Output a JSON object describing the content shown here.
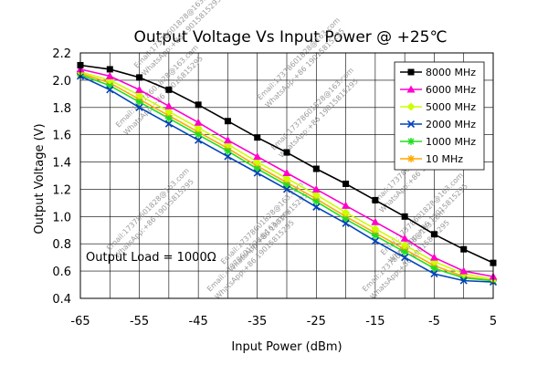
{
  "chart_data": {
    "type": "line",
    "title": "Output Voltage Vs Input Power @ +25℃",
    "xlabel": "Input Power (dBm)",
    "ylabel": "Output Voltage (V)",
    "xlim": [
      -65,
      5
    ],
    "ylim": [
      0.4,
      2.2
    ],
    "xticks": [
      -65,
      -55,
      -45,
      -35,
      -25,
      -15,
      -5,
      5
    ],
    "yticks": [
      0.4,
      0.6,
      0.8,
      1.0,
      1.2,
      1.4,
      1.6,
      1.8,
      2.0,
      2.2
    ],
    "xtick_labels": [
      "-65",
      "-55",
      "-45",
      "-35",
      "-25",
      "-15",
      "-5",
      "5"
    ],
    "ytick_labels": [
      "0.4",
      "0.6",
      "0.8",
      "1.0",
      "1.2",
      "1.4",
      "1.6",
      "1.8",
      "2.0",
      "2.2"
    ],
    "grid": true,
    "legend_position": "top-right",
    "annotation": "Output Load = 1000Ω",
    "series": [
      {
        "name": "8000 MHz",
        "color": "#000000",
        "marker": "square",
        "x": [
          -65,
          -60,
          -55,
          -50,
          -45,
          -40,
          -35,
          -30,
          -25,
          -20,
          -15,
          -10,
          -5,
          0,
          5
        ],
        "values": [
          2.11,
          2.08,
          2.02,
          1.93,
          1.82,
          1.7,
          1.58,
          1.47,
          1.35,
          1.24,
          1.12,
          1.0,
          0.87,
          0.76,
          0.66
        ]
      },
      {
        "name": "6000 MHz",
        "color": "#ff00cc",
        "marker": "triangle",
        "x": [
          -65,
          -60,
          -55,
          -50,
          -45,
          -40,
          -35,
          -30,
          -25,
          -20,
          -15,
          -10,
          -5,
          0,
          5
        ],
        "values": [
          2.08,
          2.03,
          1.93,
          1.81,
          1.69,
          1.56,
          1.44,
          1.32,
          1.2,
          1.08,
          0.96,
          0.84,
          0.7,
          0.6,
          0.56
        ]
      },
      {
        "name": "5000 MHz",
        "color": "#ccff00",
        "marker": "diamond",
        "x": [
          -65,
          -60,
          -55,
          -50,
          -45,
          -40,
          -35,
          -30,
          -25,
          -20,
          -15,
          -10,
          -5,
          0,
          5
        ],
        "values": [
          2.06,
          2.0,
          1.89,
          1.77,
          1.65,
          1.53,
          1.4,
          1.28,
          1.16,
          1.03,
          0.91,
          0.79,
          0.67,
          0.58,
          0.54
        ]
      },
      {
        "name": "2000 MHz",
        "color": "#0044bb",
        "marker": "x",
        "x": [
          -65,
          -60,
          -55,
          -50,
          -45,
          -40,
          -35,
          -30,
          -25,
          -20,
          -15,
          -10,
          -5,
          0,
          5
        ],
        "values": [
          2.03,
          1.93,
          1.8,
          1.68,
          1.56,
          1.44,
          1.32,
          1.2,
          1.07,
          0.95,
          0.82,
          0.7,
          0.58,
          0.53,
          0.52
        ]
      },
      {
        "name": "1000 MHz",
        "color": "#22dd22",
        "marker": "star",
        "x": [
          -65,
          -60,
          -55,
          -50,
          -45,
          -40,
          -35,
          -30,
          -25,
          -20,
          -15,
          -10,
          -5,
          0,
          5
        ],
        "values": [
          2.04,
          1.96,
          1.84,
          1.72,
          1.6,
          1.48,
          1.35,
          1.23,
          1.11,
          0.98,
          0.86,
          0.74,
          0.62,
          0.55,
          0.53
        ]
      },
      {
        "name": "10 MHz",
        "color": "#ffaa00",
        "marker": "star",
        "x": [
          -65,
          -60,
          -55,
          -50,
          -45,
          -40,
          -35,
          -30,
          -25,
          -20,
          -15,
          -10,
          -5,
          0,
          5
        ],
        "values": [
          2.05,
          1.98,
          1.86,
          1.74,
          1.62,
          1.5,
          1.37,
          1.25,
          1.13,
          1.0,
          0.88,
          0.76,
          0.64,
          0.56,
          0.53
        ]
      }
    ],
    "watermark": [
      "Email:17378601828@163.com",
      "WhatsApp:+86 19015815295"
    ]
  }
}
